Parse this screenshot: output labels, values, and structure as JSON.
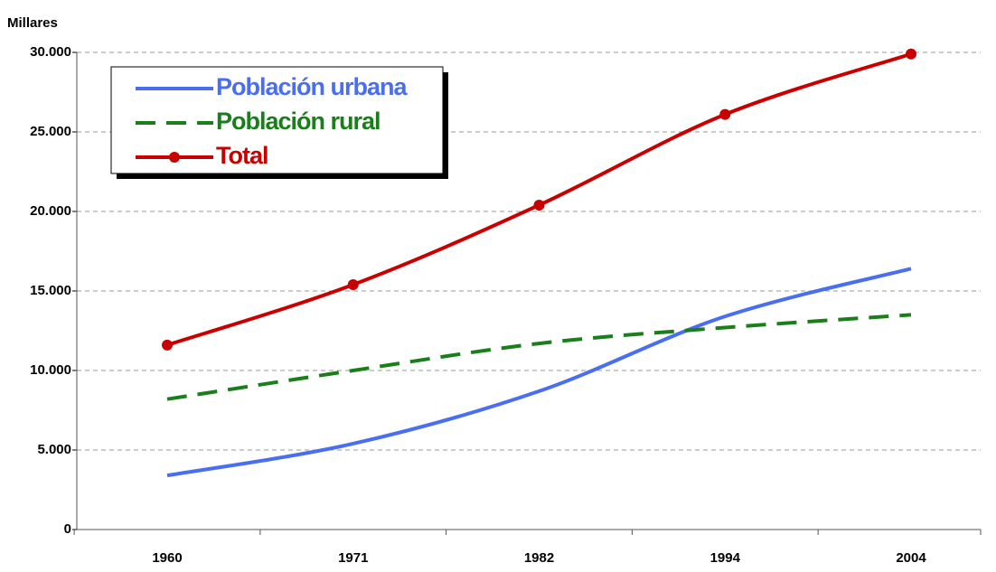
{
  "chart_data": {
    "type": "line",
    "y_label": "Millares",
    "categories": [
      "1960",
      "1971",
      "1982",
      "1994",
      "2004"
    ],
    "series": [
      {
        "name": "Población urbana",
        "color": "#4a6ef0",
        "dash": false,
        "markers": false,
        "values": [
          3400,
          5400,
          8700,
          13400,
          16400
        ]
      },
      {
        "name": "Población rural",
        "color": "#1a7f1a",
        "dash": true,
        "markers": false,
        "values": [
          8200,
          10000,
          11700,
          12700,
          13500
        ]
      },
      {
        "name": "Total",
        "color": "#c80000",
        "dash": false,
        "markers": true,
        "values": [
          11600,
          15400,
          20400,
          26100,
          29900
        ]
      }
    ],
    "ylim": [
      0,
      30000
    ],
    "yticks": [
      0,
      {
        "value": 5000,
        "label": "5.000"
      },
      {
        "value": 10000,
        "label": "10.000"
      },
      {
        "value": 15000,
        "label": "15.000"
      },
      {
        "value": 20000,
        "label": "20.000"
      },
      {
        "value": 25000,
        "label": "25.000"
      },
      {
        "value": 30000,
        "label": "30.000"
      }
    ],
    "grid": true,
    "smooth": true,
    "legend": "top-left"
  }
}
